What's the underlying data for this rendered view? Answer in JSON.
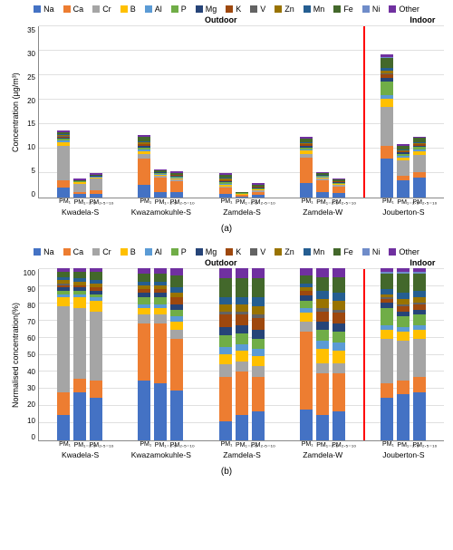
{
  "elements": [
    "Na",
    "Ca",
    "Cr",
    "B",
    "Al",
    "P",
    "Mg",
    "K",
    "V",
    "Zn",
    "Mn",
    "Fe",
    "Ni",
    "Other"
  ],
  "colors": {
    "Na": "#4472c4",
    "Ca": "#ed7d31",
    "Cr": "#a5a5a5",
    "B": "#ffc000",
    "Al": "#5b9bd5",
    "P": "#70ad47",
    "Mg": "#264478",
    "K": "#9e480e",
    "V": "#636363",
    "Zn": "#997300",
    "Mn": "#255e91",
    "Fe": "#43682b",
    "Ni": "#6f8cc9",
    "Other": "#7030a0"
  },
  "sites": [
    "Kwadela-S",
    "Kwazamokuhle-S",
    "Zamdela-S",
    "Zamdela-W",
    "Jouberton-S"
  ],
  "fractions": [
    "PM₁",
    "PM₁₋₂.₅",
    "PM₂.₅₋₁₀"
  ],
  "regionLabelOutdoor": "Outdoor",
  "regionLabelIndoor": "Indoor",
  "panelA": {
    "label": "(a)",
    "ylabel": "Concentration (µg/m³)",
    "ymax": 35,
    "ystep": 5,
    "data": [
      [
        {
          "Na": 2.0,
          "Ca": 1.5,
          "Cr": 7.0,
          "B": 0.8,
          "Al": 0.3,
          "P": 0.3,
          "Mg": 0.3,
          "K": 0.2,
          "V": 0.1,
          "Zn": 0.2,
          "Mn": 0.2,
          "Fe": 0.4,
          "Other": 0.4
        },
        {
          "Na": 0.7,
          "Ca": 0.5,
          "Cr": 1.6,
          "B": 0.3,
          "Al": 0.1,
          "P": 0.1,
          "Mg": 0.1,
          "Fe": 0.2,
          "Other": 0.2
        },
        {
          "Na": 0.8,
          "Ca": 0.6,
          "Cr": 2.4,
          "B": 0.3,
          "Al": 0.1,
          "P": 0.1,
          "Mg": 0.1,
          "Fe": 0.3,
          "Other": 0.2
        }
      ],
      [
        {
          "Na": 2.5,
          "Ca": 5.5,
          "Cr": 0.8,
          "B": 0.6,
          "Al": 0.3,
          "P": 0.5,
          "Mg": 0.4,
          "K": 0.3,
          "Zn": 0.3,
          "Mn": 0.3,
          "Fe": 0.8,
          "Other": 0.4
        },
        {
          "Na": 1.2,
          "Ca": 2.8,
          "Cr": 0.4,
          "B": 0.3,
          "Al": 0.15,
          "P": 0.2,
          "Mg": 0.15,
          "Fe": 0.4,
          "Other": 0.2
        },
        {
          "Na": 1.1,
          "Ca": 2.2,
          "Cr": 0.3,
          "B": 0.25,
          "Al": 0.15,
          "P": 0.2,
          "Mg": 0.15,
          "K": 0.2,
          "Fe": 0.5,
          "Other": 0.3
        }
      ],
      [
        {
          "Na": 0.8,
          "Ca": 1.2,
          "Cr": 0.3,
          "B": 0.3,
          "Al": 0.2,
          "P": 0.3,
          "Mg": 0.2,
          "K": 0.3,
          "Zn": 0.2,
          "Mn": 0.2,
          "Fe": 0.6,
          "Other": 0.3
        },
        {
          "Na": 0.2,
          "Ca": 0.3,
          "Cr": 0.1,
          "B": 0.1,
          "Al": 0.05,
          "P": 0.1,
          "Fe": 0.2,
          "Other": 0.1
        },
        {
          "Na": 0.6,
          "Ca": 0.6,
          "Cr": 0.2,
          "B": 0.2,
          "Al": 0.1,
          "P": 0.2,
          "Mg": 0.15,
          "K": 0.2,
          "Fe": 0.4,
          "Other": 0.25
        }
      ],
      [
        {
          "Na": 3.0,
          "Ca": 5.2,
          "Cr": 0.7,
          "B": 0.6,
          "Al": 0.3,
          "P": 0.4,
          "Mg": 0.3,
          "K": 0.3,
          "Zn": 0.2,
          "Mn": 0.3,
          "Fe": 0.6,
          "Other": 0.4
        },
        {
          "Na": 1.1,
          "Ca": 2.4,
          "Cr": 0.3,
          "B": 0.3,
          "Al": 0.15,
          "P": 0.2,
          "Mg": 0.15,
          "Fe": 0.35,
          "Other": 0.2
        },
        {
          "Na": 0.9,
          "Ca": 1.4,
          "Cr": 0.25,
          "B": 0.2,
          "Al": 0.1,
          "P": 0.15,
          "Mg": 0.15,
          "K": 0.15,
          "Fe": 0.4,
          "Other": 0.25
        }
      ],
      [
        {
          "Na": 8.0,
          "Ca": 2.5,
          "Cr": 8.0,
          "B": 1.5,
          "Al": 0.8,
          "P": 2.8,
          "Mg": 0.8,
          "K": 0.6,
          "V": 0.3,
          "Zn": 0.5,
          "Mn": 0.5,
          "Fe": 2.0,
          "Ni": 0.3,
          "Other": 0.6
        },
        {
          "Na": 3.5,
          "Ca": 1.0,
          "Cr": 3.0,
          "B": 0.6,
          "Al": 0.3,
          "P": 0.5,
          "Mg": 0.3,
          "K": 0.2,
          "Zn": 0.2,
          "Mn": 0.2,
          "Fe": 0.8,
          "Other": 0.3
        },
        {
          "Na": 4.0,
          "Ca": 1.2,
          "Cr": 3.5,
          "B": 0.7,
          "Al": 0.3,
          "P": 0.6,
          "Mg": 0.3,
          "K": 0.25,
          "Zn": 0.2,
          "Mn": 0.2,
          "Fe": 0.9,
          "Other": 0.3
        }
      ]
    ]
  },
  "panelB": {
    "label": "(b)",
    "ylabel": "Normalised concentration(%)",
    "ymax": 100,
    "ystep": 10,
    "data": [
      [
        {
          "Na": 15,
          "Ca": 13,
          "Cr": 50,
          "B": 5,
          "Al": 2,
          "P": 2,
          "Mg": 2,
          "K": 1,
          "V": 1,
          "Zn": 2,
          "Mn": 2,
          "Fe": 3,
          "Other": 2
        },
        {
          "Na": 28,
          "Ca": 8,
          "Cr": 41,
          "B": 6,
          "Al": 2,
          "P": 2,
          "Mg": 2,
          "K": 1,
          "Zn": 2,
          "Mn": 2,
          "Fe": 4,
          "Other": 2
        },
        {
          "Na": 25,
          "Ca": 10,
          "Cr": 40,
          "B": 6,
          "Al": 2,
          "P": 2,
          "Mg": 2,
          "K": 2,
          "Zn": 2,
          "Mn": 2,
          "Fe": 5,
          "Other": 2
        }
      ],
      [
        {
          "Na": 35,
          "Ca": 33,
          "Cr": 5,
          "B": 4,
          "Al": 2,
          "P": 4,
          "Mg": 3,
          "K": 2,
          "Zn": 2,
          "Mn": 2,
          "Fe": 5,
          "Other": 3
        },
        {
          "Na": 33,
          "Ca": 35,
          "Cr": 5,
          "B": 4,
          "Al": 2,
          "P": 4,
          "Mg": 3,
          "K": 2,
          "Zn": 2,
          "Mn": 2,
          "Fe": 5,
          "Other": 3
        },
        {
          "Na": 29,
          "Ca": 30,
          "Cr": 5,
          "B": 5,
          "Al": 3,
          "P": 4,
          "Mg": 3,
          "K": 4,
          "Zn": 3,
          "Mn": 3,
          "Fe": 7,
          "Other": 4
        }
      ],
      [
        {
          "Na": 11,
          "Ca": 26,
          "Cr": 7,
          "B": 6,
          "Al": 4,
          "P": 7,
          "Mg": 5,
          "K": 7,
          "V": 2,
          "Zn": 4,
          "Mn": 4,
          "Fe": 11,
          "Other": 6
        },
        {
          "Na": 15,
          "Ca": 25,
          "Cr": 6,
          "B": 6,
          "Al": 4,
          "P": 6,
          "Mg": 5,
          "K": 6,
          "V": 2,
          "Zn": 4,
          "Mn": 4,
          "Fe": 11,
          "Other": 6
        },
        {
          "Na": 17,
          "Ca": 20,
          "Cr": 6,
          "B": 6,
          "Al": 4,
          "P": 6,
          "Mg": 5,
          "K": 7,
          "V": 2,
          "Zn": 5,
          "Mn": 5,
          "Fe": 11,
          "Other": 6
        }
      ],
      [
        {
          "Na": 18,
          "Ca": 45,
          "Cr": 6,
          "B": 5,
          "Al": 3,
          "P": 4,
          "Mg": 3,
          "K": 3,
          "Zn": 2,
          "Mn": 2,
          "Fe": 5,
          "Other": 4
        },
        {
          "Na": 15,
          "Ca": 24,
          "Cr": 6,
          "B": 8,
          "Al": 5,
          "P": 6,
          "Mg": 5,
          "K": 6,
          "V": 2,
          "Zn": 5,
          "Mn": 5,
          "Fe": 8,
          "Other": 5
        },
        {
          "Na": 17,
          "Ca": 22,
          "Cr": 6,
          "B": 7,
          "Al": 5,
          "P": 6,
          "Mg": 5,
          "K": 6,
          "V": 2,
          "Zn": 5,
          "Mn": 5,
          "Fe": 9,
          "Other": 5
        }
      ],
      [
        {
          "Na": 25,
          "Ca": 8,
          "Cr": 26,
          "B": 5,
          "Al": 3,
          "P": 10,
          "Mg": 3,
          "K": 2,
          "V": 1,
          "Zn": 2,
          "Mn": 3,
          "Fe": 9,
          "Ni": 1,
          "Other": 2
        },
        {
          "Na": 27,
          "Ca": 8,
          "Cr": 23,
          "B": 5,
          "Al": 3,
          "P": 6,
          "Mg": 3,
          "K": 3,
          "V": 1,
          "Zn": 3,
          "Mn": 4,
          "Fe": 11,
          "Ni": 1,
          "Other": 2
        },
        {
          "Na": 28,
          "Ca": 9,
          "Cr": 22,
          "B": 5,
          "Al": 3,
          "P": 6,
          "Mg": 3,
          "K": 3,
          "V": 1,
          "Zn": 3,
          "Mn": 4,
          "Fe": 10,
          "Ni": 1,
          "Other": 2
        }
      ]
    ]
  }
}
